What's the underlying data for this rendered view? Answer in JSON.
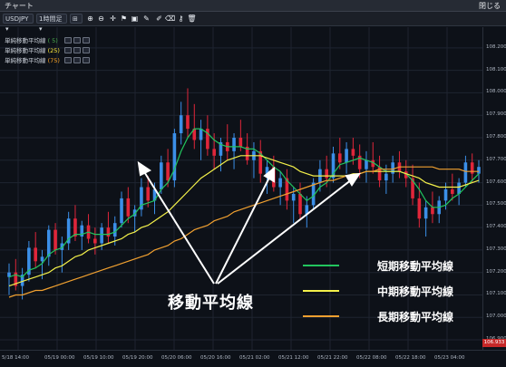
{
  "window": {
    "title": "チャート",
    "right_label": "閉じる"
  },
  "toolbar": {
    "symbol": "USDJPY",
    "timeframe": "1時間足",
    "chart_type": "⊞"
  },
  "legend": [
    {
      "label": "単純移動平均線",
      "period": "( 5)",
      "period_color": "#4caf50"
    },
    {
      "label": "単純移動平均線",
      "period": "(25)",
      "period_color": "#ffeb3b"
    },
    {
      "label": "単純移動平均線",
      "period": "(75)",
      "period_color": "#ffa726"
    }
  ],
  "annotation": "移動平均線",
  "key": [
    {
      "label": "短期移動平均線",
      "color": "#22c55e"
    },
    {
      "label": "中期移動平均線",
      "color": "#f3f04a"
    },
    {
      "label": "長期移動平均線",
      "color": "#f0a030"
    }
  ],
  "current_price": "106.933",
  "chart_data": {
    "type": "line",
    "title": "",
    "x_ticks": [
      "5/18 14:00",
      "05/19 00:00",
      "05/19 10:00",
      "05/19 20:00",
      "05/20 06:00",
      "05/20 16:00",
      "05/21 02:00",
      "05/21 12:00",
      "05/21 22:00",
      "05/22 08:00",
      "05/22 18:00",
      "05/23 04:00"
    ],
    "y_ticks": [
      "108.200",
      "108.100",
      "108.000",
      "107.900",
      "107.800",
      "107.700",
      "107.600",
      "107.500",
      "107.400",
      "107.300",
      "107.200",
      "107.100",
      "107.000",
      "106.900"
    ],
    "ylim": [
      106.88,
      108.26
    ],
    "candles": [
      [
        107.18,
        107.24,
        107.1,
        107.2
      ],
      [
        107.2,
        107.26,
        107.12,
        107.14
      ],
      [
        107.14,
        107.22,
        107.08,
        107.19
      ],
      [
        107.19,
        107.34,
        107.16,
        107.31
      ],
      [
        107.31,
        107.38,
        107.22,
        107.25
      ],
      [
        107.25,
        107.3,
        107.17,
        107.27
      ],
      [
        107.27,
        107.41,
        107.23,
        107.39
      ],
      [
        107.39,
        107.42,
        107.28,
        107.3
      ],
      [
        107.3,
        107.36,
        107.2,
        107.33
      ],
      [
        107.33,
        107.47,
        107.3,
        107.44
      ],
      [
        107.44,
        107.5,
        107.34,
        107.36
      ],
      [
        107.36,
        107.43,
        107.3,
        107.41
      ],
      [
        107.41,
        107.46,
        107.33,
        107.35
      ],
      [
        107.35,
        107.4,
        107.28,
        107.33
      ],
      [
        107.33,
        107.42,
        107.3,
        107.4
      ],
      [
        107.4,
        107.47,
        107.33,
        107.36
      ],
      [
        107.36,
        107.45,
        107.32,
        107.42
      ],
      [
        107.42,
        107.56,
        107.4,
        107.53
      ],
      [
        107.53,
        107.58,
        107.42,
        107.45
      ],
      [
        107.45,
        107.5,
        107.38,
        107.48
      ],
      [
        107.48,
        107.62,
        107.45,
        107.58
      ],
      [
        107.58,
        107.63,
        107.49,
        107.52
      ],
      [
        107.52,
        107.6,
        107.46,
        107.57
      ],
      [
        107.57,
        107.72,
        107.55,
        107.69
      ],
      [
        107.69,
        107.75,
        107.58,
        107.61
      ],
      [
        107.61,
        107.84,
        107.58,
        107.82
      ],
      [
        107.82,
        107.96,
        107.77,
        107.9
      ],
      [
        107.9,
        108.02,
        107.8,
        107.84
      ],
      [
        107.84,
        107.95,
        107.75,
        107.79
      ],
      [
        107.79,
        107.88,
        107.7,
        107.84
      ],
      [
        107.84,
        107.9,
        107.72,
        107.75
      ],
      [
        107.75,
        107.82,
        107.66,
        107.72
      ],
      [
        107.72,
        107.8,
        107.65,
        107.78
      ],
      [
        107.78,
        107.86,
        107.7,
        107.74
      ],
      [
        107.74,
        107.82,
        107.66,
        107.8
      ],
      [
        107.8,
        107.88,
        107.74,
        107.76
      ],
      [
        107.76,
        107.82,
        107.68,
        107.7
      ],
      [
        107.7,
        107.78,
        107.62,
        107.74
      ],
      [
        107.74,
        107.79,
        107.6,
        107.64
      ],
      [
        107.64,
        107.7,
        107.55,
        107.67
      ],
      [
        107.67,
        107.72,
        107.56,
        107.58
      ],
      [
        107.58,
        107.65,
        107.5,
        107.62
      ],
      [
        107.62,
        107.66,
        107.48,
        107.52
      ],
      [
        107.52,
        107.58,
        107.42,
        107.55
      ],
      [
        107.55,
        107.6,
        107.44,
        107.46
      ],
      [
        107.46,
        107.54,
        107.4,
        107.5
      ],
      [
        107.5,
        107.62,
        107.48,
        107.6
      ],
      [
        107.6,
        107.7,
        107.56,
        107.66
      ],
      [
        107.66,
        107.72,
        107.58,
        107.62
      ],
      [
        107.62,
        107.76,
        107.6,
        107.73
      ],
      [
        107.73,
        107.8,
        107.66,
        107.69
      ],
      [
        107.69,
        107.78,
        107.64,
        107.75
      ],
      [
        107.75,
        107.8,
        107.68,
        107.72
      ],
      [
        107.72,
        107.77,
        107.62,
        107.66
      ],
      [
        107.66,
        107.74,
        107.6,
        107.7
      ],
      [
        107.7,
        107.78,
        107.64,
        107.67
      ],
      [
        107.67,
        107.72,
        107.58,
        107.61
      ],
      [
        107.61,
        107.68,
        107.55,
        107.64
      ],
      [
        107.64,
        107.72,
        107.6,
        107.69
      ],
      [
        107.69,
        107.74,
        107.62,
        107.65
      ],
      [
        107.65,
        107.7,
        107.58,
        107.62
      ],
      [
        107.62,
        107.68,
        107.5,
        107.53
      ],
      [
        107.53,
        107.6,
        107.4,
        107.44
      ],
      [
        107.44,
        107.52,
        107.36,
        107.49
      ],
      [
        107.49,
        107.56,
        107.42,
        107.46
      ],
      [
        107.46,
        107.54,
        107.42,
        107.52
      ],
      [
        107.52,
        107.6,
        107.48,
        107.57
      ],
      [
        107.57,
        107.64,
        107.52,
        107.55
      ],
      [
        107.55,
        107.62,
        107.5,
        107.6
      ],
      [
        107.6,
        107.72,
        107.58,
        107.69
      ],
      [
        107.69,
        107.73,
        107.6,
        107.64
      ],
      [
        107.64,
        107.7,
        107.6,
        107.67
      ]
    ],
    "series": [
      {
        "values": [
          107.18,
          107.19,
          107.18,
          107.21,
          107.22,
          107.24,
          107.28,
          107.3,
          107.31,
          107.35,
          107.37,
          107.37,
          107.38,
          107.37,
          107.37,
          107.37,
          107.38,
          107.41,
          107.44,
          107.46,
          107.5,
          107.51,
          107.52,
          107.57,
          107.6,
          107.66,
          107.74,
          107.8,
          107.84,
          107.84,
          107.82,
          107.79,
          107.77,
          107.76,
          107.76,
          107.76,
          107.75,
          107.75,
          107.73,
          107.7,
          107.67,
          107.65,
          107.61,
          107.58,
          107.55,
          107.52,
          107.54,
          107.58,
          107.6,
          107.64,
          107.68,
          107.69,
          107.7,
          107.71,
          107.7,
          107.69,
          107.67,
          107.65,
          107.65,
          107.65,
          107.64,
          107.61,
          107.57,
          107.52,
          107.49,
          107.49,
          107.5,
          107.53,
          107.55,
          107.58,
          107.61,
          107.64
        ]
      },
      {
        "values": [
          107.14,
          107.15,
          107.16,
          107.17,
          107.18,
          107.19,
          107.2,
          107.22,
          107.23,
          107.25,
          107.27,
          107.28,
          107.3,
          107.31,
          107.32,
          107.33,
          107.34,
          107.35,
          107.37,
          107.38,
          107.4,
          107.41,
          107.43,
          107.45,
          107.47,
          107.5,
          107.53,
          107.56,
          107.59,
          107.62,
          107.64,
          107.66,
          107.68,
          107.7,
          107.71,
          107.72,
          107.72,
          107.72,
          107.72,
          107.71,
          107.7,
          107.69,
          107.68,
          107.67,
          107.65,
          107.64,
          107.63,
          107.63,
          107.63,
          107.63,
          107.63,
          107.63,
          107.64,
          107.64,
          107.65,
          107.65,
          107.65,
          107.65,
          107.65,
          107.65,
          107.64,
          107.63,
          107.62,
          107.6,
          107.59,
          107.58,
          107.58,
          107.58,
          107.58,
          107.59,
          107.6,
          107.61
        ]
      },
      {
        "values": [
          107.09,
          107.1,
          107.1,
          107.11,
          107.12,
          107.12,
          107.13,
          107.14,
          107.15,
          107.16,
          107.17,
          107.18,
          107.19,
          107.2,
          107.21,
          107.22,
          107.23,
          107.24,
          107.25,
          107.26,
          107.27,
          107.28,
          107.3,
          107.31,
          107.32,
          107.34,
          107.35,
          107.37,
          107.39,
          107.4,
          107.41,
          107.43,
          107.44,
          107.45,
          107.47,
          107.48,
          107.49,
          107.5,
          107.51,
          107.52,
          107.53,
          107.54,
          107.55,
          107.56,
          107.57,
          107.58,
          107.59,
          107.6,
          107.61,
          107.61,
          107.62,
          107.63,
          107.63,
          107.64,
          107.65,
          107.65,
          107.66,
          107.66,
          107.66,
          107.67,
          107.67,
          107.67,
          107.67,
          107.67,
          107.67,
          107.66,
          107.66,
          107.66,
          107.66,
          107.65,
          107.65,
          107.65
        ]
      }
    ]
  }
}
